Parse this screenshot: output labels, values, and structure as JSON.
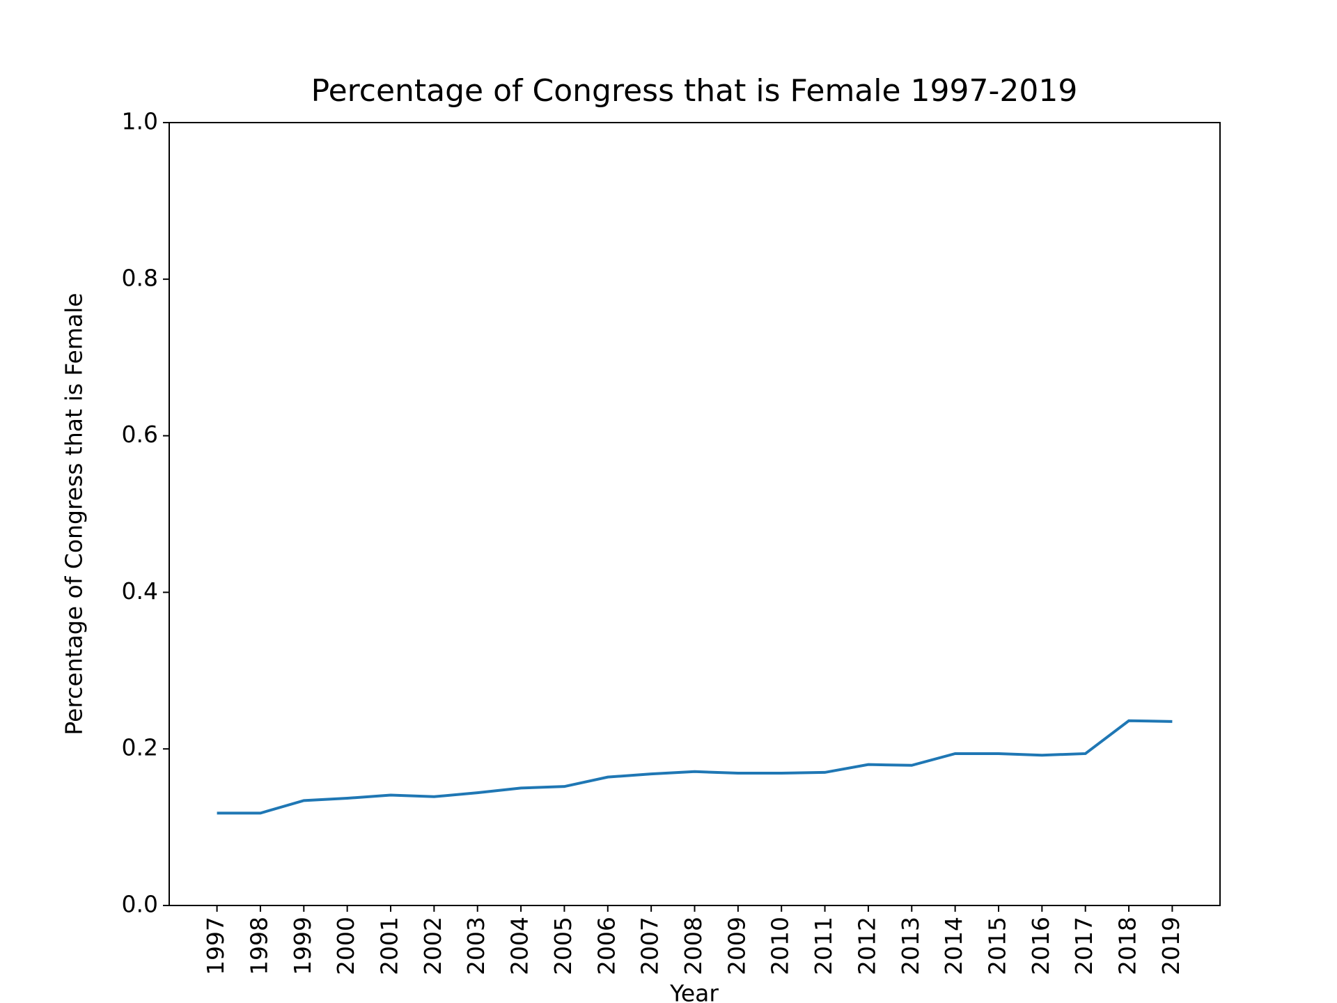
{
  "chart_data": {
    "type": "line",
    "title": "Percentage of Congress that is Female 1997-2019",
    "x_label": "Year",
    "y_label": "Percentage of Congress that is Female",
    "categories": [
      "1997",
      "1998",
      "1999",
      "2000",
      "2001",
      "2002",
      "2003",
      "2004",
      "2005",
      "2006",
      "2007",
      "2008",
      "2009",
      "2010",
      "2011",
      "2012",
      "2013",
      "2014",
      "2015",
      "2016",
      "2017",
      "2018",
      "2019"
    ],
    "series": [
      {
        "color": "#1f77b4",
        "values": [
          0.118,
          0.118,
          0.134,
          0.137,
          0.141,
          0.139,
          0.144,
          0.15,
          0.152,
          0.164,
          0.168,
          0.171,
          0.169,
          0.169,
          0.17,
          0.18,
          0.179,
          0.194,
          0.194,
          0.192,
          0.194,
          0.236,
          0.235
        ]
      }
    ],
    "ylim": [
      0,
      1
    ],
    "yticks": [
      {
        "value": 0,
        "label": "0.0"
      },
      0.2,
      0.4,
      0.6,
      0.8,
      {
        "value": 1,
        "label": "1.0"
      }
    ],
    "grid": false
  }
}
